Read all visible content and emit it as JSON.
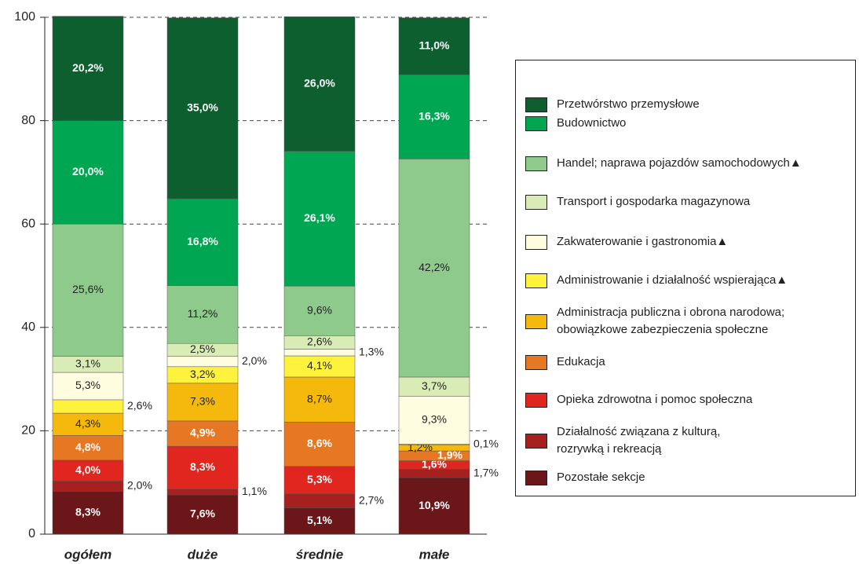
{
  "chart_data": {
    "type": "stacked_bar",
    "categories": [
      "ogółem",
      "duże",
      "średnie",
      "małe"
    ],
    "ylim": [
      0,
      100
    ],
    "yticks": [
      0,
      20,
      40,
      60,
      80,
      100
    ],
    "grid": true,
    "legend": "right",
    "series": [
      {
        "name": "Przetwórstwo przemysłowe",
        "color": "#0d5f30",
        "values": [
          20.2,
          35.0,
          26.0,
          11.0
        ],
        "value_labels": [
          "20,2%",
          "35,0%",
          "26,0%",
          "11,0%"
        ]
      },
      {
        "name": "Budownictwo",
        "color": "#00a651",
        "values": [
          20.0,
          16.8,
          26.1,
          16.3
        ],
        "value_labels": [
          "20,0%",
          "16,8%",
          "26,1%",
          "16,3%"
        ]
      },
      {
        "name": "Handel; naprawa pojazdów samochodowych▲",
        "color": "#8fca8d",
        "values": [
          25.6,
          11.2,
          9.6,
          42.2
        ],
        "value_labels": [
          "25,6%",
          "11,2%",
          "9,6%",
          "42,2%"
        ]
      },
      {
        "name": "Transport i gospodarka magazynowa",
        "color": "#d9ecb6",
        "values": [
          3.1,
          2.5,
          2.6,
          3.7
        ],
        "value_labels": [
          "3,1%",
          "2,5%",
          "2,6%",
          "3,7%"
        ]
      },
      {
        "name": "Zakwaterowanie i gastronomia▲",
        "color": "#fffde0",
        "values": [
          5.3,
          2.0,
          1.3,
          9.3
        ],
        "value_labels": [
          "5,3%",
          "2,0%",
          "1,3%",
          "9,3%"
        ]
      },
      {
        "name": "Administrowanie i działalność wspierająca▲",
        "color": "#fff23c",
        "values": [
          2.6,
          3.2,
          4.1,
          0.1
        ],
        "value_labels": [
          "2,6%",
          "3,2%",
          "4,1%",
          "0,1%"
        ]
      },
      {
        "name": "Administracja publiczna i obrona narodowa;\nobowiązkowe zabezpieczenia społeczne",
        "color": "#f5b90d",
        "values": [
          4.3,
          7.3,
          8.7,
          1.2
        ],
        "value_labels": [
          "4,3%",
          "7,3%",
          "8,7%",
          "1,2%"
        ]
      },
      {
        "name": "Edukacja",
        "color": "#e77823",
        "values": [
          4.8,
          4.9,
          8.6,
          1.9
        ],
        "value_labels": [
          "4,8%",
          "4,9%",
          "8,6%",
          "1,9%"
        ]
      },
      {
        "name": "Opieka zdrowotna i pomoc społeczna",
        "color": "#e1251f",
        "values": [
          4.0,
          8.3,
          5.3,
          1.6
        ],
        "value_labels": [
          "4,0%",
          "8,3%",
          "5,3%",
          "1,6%"
        ]
      },
      {
        "name": "Działalność związana z kulturą,\nrozrywką i rekreacją",
        "color": "#a6201f",
        "values": [
          2.0,
          1.1,
          2.7,
          1.7
        ],
        "value_labels": [
          "2,0%",
          "1,1%",
          "2,7%",
          "1,7%"
        ]
      },
      {
        "name": "Pozostałe sekcje",
        "color": "#6b1618",
        "values": [
          8.3,
          7.6,
          5.1,
          10.9
        ],
        "value_labels": [
          "8,3%",
          "7,6%",
          "5,1%",
          "10,9%"
        ]
      }
    ]
  }
}
